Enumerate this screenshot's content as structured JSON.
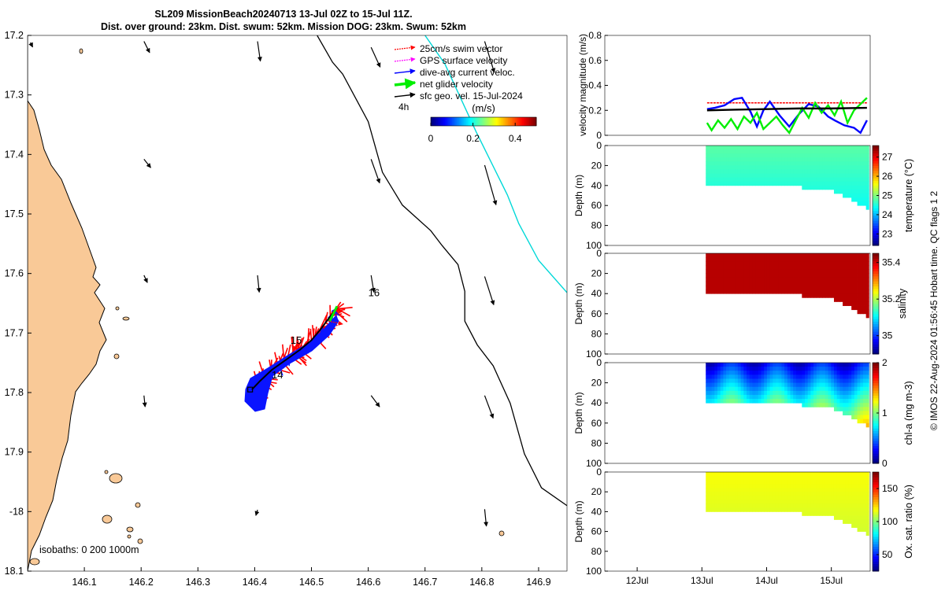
{
  "title": {
    "line1": "SL209 MissionBeach20240713 13-Jul 02Z to 15-Jul 11Z.",
    "line2": "Dist. over ground: 23km. Dist. swum: 52km. Mission DOG: 23km. Swum: 52km"
  },
  "side_note": "© IMOS 22-Aug-2024 01:56:45 Hobart time. QC flags 1  2",
  "colors": {
    "land": "#f9c997",
    "swim": "#ff0000",
    "gps": "#ff00ff",
    "dac": "#0000ff",
    "net": "#00ee00",
    "geo": "#000000",
    "track": "#00d8d8",
    "dac_fill": "#0a14ff"
  },
  "chart_data": [
    {
      "name": "map",
      "type": "scatter",
      "xlabel": "",
      "ylabel": "",
      "xlim": [
        146.0,
        146.95
      ],
      "ylim": [
        -18.1,
        -17.2
      ],
      "xticks": [
        146.1,
        146.2,
        146.3,
        146.4,
        146.5,
        146.6,
        146.7,
        146.8,
        146.9
      ],
      "xtick_labels": [
        "146.1",
        "146.2",
        "146.3",
        "146.4",
        "146.5",
        "146.6",
        "146.7",
        "146.8",
        "146.9"
      ],
      "yticks": [
        -17.2,
        -17.3,
        -17.4,
        -17.5,
        -17.6,
        -17.7,
        -17.8,
        -17.9,
        -18.0,
        -18.1
      ],
      "ytick_labels": [
        "17.2",
        "17.3",
        "17.4",
        "17.5",
        "17.6",
        "17.7",
        "17.8",
        "17.9",
        "-18",
        "18.1"
      ],
      "legend": {
        "position": "top-right",
        "entries": [
          {
            "label": "25cm/s swim vector",
            "color": "#ff0000",
            "style": "dotted-arrow"
          },
          {
            "label": "GPS surface velocity",
            "color": "#ff00ff",
            "style": "dotted-arrow"
          },
          {
            "label": "dive-avg current veloc.",
            "color": "#0000ff",
            "style": "arrow"
          },
          {
            "label": "net glider velocity",
            "color": "#00ee00",
            "style": "thick-arrow"
          },
          {
            "label": "sfc geo. vel. 15-Jul-2024",
            "color": "#000000",
            "style": "arrow"
          }
        ],
        "interval_label": "4h"
      },
      "colorbar": {
        "label": "(m/s)",
        "ticks": [
          0,
          0.2,
          0.4
        ],
        "tick_labels": [
          "0",
          "0.2",
          "0.4"
        ],
        "range": [
          0,
          0.5
        ]
      },
      "isobaths_label": "isobaths: 0   200  1000m",
      "day_labels": [
        {
          "text": "14",
          "lon": 146.43,
          "lat": -17.776
        },
        {
          "text": "15",
          "lon": 146.463,
          "lat": -17.718
        },
        {
          "text": "16",
          "lon": 146.6,
          "lat": -17.638
        }
      ],
      "track": [
        [
          146.395,
          -17.795
        ],
        [
          146.41,
          -17.78
        ],
        [
          146.43,
          -17.762
        ],
        [
          146.455,
          -17.745
        ],
        [
          146.48,
          -17.728
        ],
        [
          146.5,
          -17.712
        ],
        [
          146.515,
          -17.695
        ],
        [
          146.53,
          -17.676
        ],
        [
          146.545,
          -17.658
        ]
      ],
      "isobath_1000m": [
        [
          146.51,
          -17.2
        ],
        [
          146.537,
          -17.245
        ],
        [
          146.555,
          -17.265
        ],
        [
          146.6,
          -17.345
        ],
        [
          146.625,
          -17.43
        ],
        [
          146.66,
          -17.485
        ],
        [
          146.71,
          -17.528
        ],
        [
          146.73,
          -17.553
        ],
        [
          146.758,
          -17.585
        ],
        [
          146.77,
          -17.63
        ],
        [
          146.77,
          -17.68
        ],
        [
          146.792,
          -17.72
        ],
        [
          146.82,
          -17.755
        ],
        [
          146.85,
          -17.818
        ],
        [
          146.875,
          -17.903
        ],
        [
          146.905,
          -17.96
        ],
        [
          146.95,
          -17.99
        ]
      ],
      "transect_line": [
        [
          146.7,
          -17.2
        ],
        [
          146.735,
          -17.248
        ],
        [
          146.79,
          -17.362
        ],
        [
          146.845,
          -17.468
        ],
        [
          146.865,
          -17.516
        ],
        [
          146.9,
          -17.578
        ],
        [
          146.95,
          -17.632
        ]
      ],
      "current_arrows": [
        {
          "lon": 146.005,
          "lat": -17.212,
          "u": 0.004,
          "v": -0.008
        },
        {
          "lon": 146.205,
          "lat": -17.21,
          "u": 0.01,
          "v": -0.02
        },
        {
          "lon": 146.405,
          "lat": -17.21,
          "u": 0.005,
          "v": -0.035
        },
        {
          "lon": 146.605,
          "lat": -17.22,
          "u": 0.016,
          "v": -0.035
        },
        {
          "lon": 146.805,
          "lat": -17.21,
          "u": 0.017,
          "v": -0.055
        },
        {
          "lon": 146.205,
          "lat": -17.408,
          "u": 0.012,
          "v": -0.015
        },
        {
          "lon": 146.605,
          "lat": -17.408,
          "u": 0.015,
          "v": -0.042
        },
        {
          "lon": 146.805,
          "lat": -17.418,
          "u": 0.02,
          "v": -0.07
        },
        {
          "lon": 146.205,
          "lat": -17.603,
          "u": 0.006,
          "v": -0.013
        },
        {
          "lon": 146.405,
          "lat": -17.603,
          "u": 0.003,
          "v": -0.03
        },
        {
          "lon": 146.605,
          "lat": -17.603,
          "u": 0.005,
          "v": -0.03
        },
        {
          "lon": 146.805,
          "lat": -17.605,
          "u": 0.016,
          "v": -0.05
        },
        {
          "lon": 146.205,
          "lat": -17.805,
          "u": 0.002,
          "v": -0.02
        },
        {
          "lon": 146.605,
          "lat": -17.805,
          "u": 0.015,
          "v": -0.02
        },
        {
          "lon": 146.805,
          "lat": -17.805,
          "u": 0.015,
          "v": -0.04
        },
        {
          "lon": 146.405,
          "lat": -17.997,
          "u": -0.003,
          "v": -0.01
        },
        {
          "lon": 146.805,
          "lat": -17.996,
          "u": 0.003,
          "v": -0.03
        }
      ]
    },
    {
      "name": "velocity",
      "type": "line",
      "ylabel": "velocity magnitude (m/s)",
      "ylim": [
        0,
        0.8
      ],
      "yticks": [
        0,
        0.2,
        0.4,
        0.6,
        0.8
      ],
      "ytick_labels": [
        "0",
        "0.2",
        "0.4",
        "0.6",
        "0.8"
      ],
      "xlim": [
        11.5,
        15.6
      ],
      "series": [
        {
          "name": "swim",
          "color": "#ff0000",
          "x": [
            13.08,
            13.5,
            14.0,
            14.5,
            15.0,
            15.55
          ],
          "values": [
            0.26,
            0.26,
            0.26,
            0.26,
            0.26,
            0.26
          ]
        },
        {
          "name": "dive-avg current",
          "color": "#0000ff",
          "x": [
            13.08,
            13.2,
            13.35,
            13.5,
            13.62,
            13.75,
            13.85,
            13.95,
            14.05,
            14.2,
            14.35,
            14.5,
            14.65,
            14.8,
            14.95,
            15.05,
            15.2,
            15.35,
            15.45,
            15.55
          ],
          "values": [
            0.21,
            0.22,
            0.24,
            0.29,
            0.3,
            0.19,
            0.07,
            0.2,
            0.27,
            0.16,
            0.07,
            0.17,
            0.25,
            0.23,
            0.15,
            0.12,
            0.08,
            0.06,
            0.02,
            0.12
          ]
        },
        {
          "name": "net glider",
          "color": "#00ee00",
          "x": [
            13.08,
            13.15,
            13.25,
            13.35,
            13.45,
            13.55,
            13.65,
            13.75,
            13.85,
            13.95,
            14.05,
            14.15,
            14.25,
            14.35,
            14.45,
            14.55,
            14.65,
            14.75,
            14.85,
            14.95,
            15.05,
            15.15,
            15.25,
            15.35,
            15.45,
            15.55
          ],
          "values": [
            0.1,
            0.04,
            0.12,
            0.06,
            0.13,
            0.05,
            0.15,
            0.1,
            0.18,
            0.05,
            0.1,
            0.15,
            0.08,
            0.02,
            0.12,
            0.22,
            0.14,
            0.26,
            0.18,
            0.24,
            0.16,
            0.27,
            0.1,
            0.2,
            0.25,
            0.3
          ]
        },
        {
          "name": "sfc geo",
          "color": "#000000",
          "x": [
            13.08,
            13.5,
            14.0,
            14.5,
            15.0,
            15.55
          ],
          "values": [
            0.2,
            0.205,
            0.21,
            0.215,
            0.215,
            0.22
          ]
        }
      ]
    },
    {
      "name": "temperature",
      "type": "heatmap",
      "ylabel": "Depth (m)",
      "ylim": [
        100,
        0
      ],
      "yticks": [
        0,
        20,
        40,
        60,
        80,
        100
      ],
      "ytick_labels": [
        "0",
        "20",
        "40",
        "60",
        "80",
        "100"
      ],
      "colorbar_label": "temperature (°C)",
      "colorbar_ticks": [
        23,
        24,
        25,
        26,
        27
      ],
      "colorbar_range": [
        22.4,
        27.6
      ],
      "colormap": "jet"
    },
    {
      "name": "salinity",
      "type": "heatmap",
      "ylabel": "Depth (m)",
      "ylim": [
        100,
        0
      ],
      "yticks": [
        0,
        20,
        40,
        60,
        80,
        100
      ],
      "ytick_labels": [
        "0",
        "20",
        "40",
        "60",
        "80",
        "100"
      ],
      "colorbar_label": "salinity",
      "colorbar_ticks": [
        35,
        35.2,
        35.4
      ],
      "colorbar_range": [
        34.9,
        35.45
      ],
      "colormap": "jet"
    },
    {
      "name": "chla",
      "type": "heatmap",
      "ylabel": "Depth (m)",
      "ylim": [
        100,
        0
      ],
      "yticks": [
        0,
        20,
        40,
        60,
        80,
        100
      ],
      "ytick_labels": [
        "0",
        "20",
        "40",
        "60",
        "80",
        "100"
      ],
      "colorbar_label": "chl-a (mg m-3)",
      "colorbar_ticks": [
        0,
        1,
        2
      ],
      "colorbar_range": [
        0,
        2
      ],
      "colormap": "jet"
    },
    {
      "name": "oxygen",
      "type": "heatmap",
      "ylabel": "Depth (m)",
      "ylim": [
        100,
        0
      ],
      "yticks": [
        0,
        20,
        40,
        60,
        80,
        100
      ],
      "ytick_labels": [
        "0",
        "20",
        "40",
        "60",
        "80",
        "100"
      ],
      "colorbar_label": "Ox. sat. ratio (%)",
      "colorbar_ticks": [
        50,
        100,
        150
      ],
      "colorbar_range": [
        25,
        175
      ],
      "colormap": "jet",
      "xticks": [
        12,
        13,
        14,
        15
      ],
      "xtick_labels": [
        "12Jul",
        "13Jul",
        "14Jul",
        "15Jul"
      ]
    }
  ]
}
